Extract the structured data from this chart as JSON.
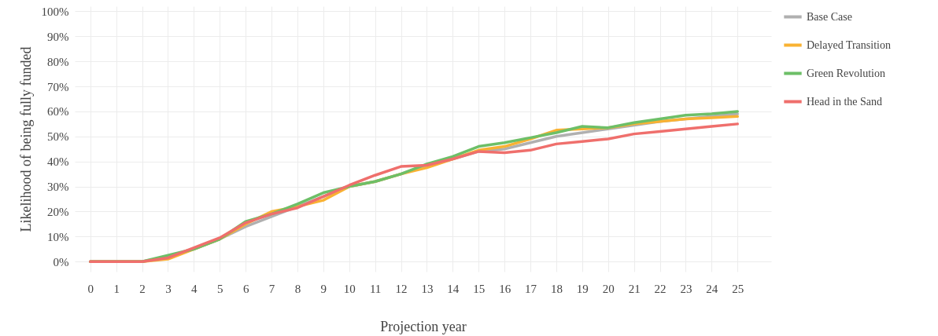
{
  "chart_data": {
    "type": "line",
    "xlabel": "Projection year",
    "ylabel": "Likelihood of being fully funded",
    "x": [
      0,
      1,
      2,
      3,
      4,
      5,
      6,
      7,
      8,
      9,
      10,
      11,
      12,
      13,
      14,
      15,
      16,
      17,
      18,
      19,
      20,
      21,
      22,
      23,
      24,
      25
    ],
    "xlim": [
      -0.6,
      26.3
    ],
    "xticks": [
      0,
      1,
      2,
      3,
      4,
      5,
      6,
      7,
      8,
      9,
      10,
      11,
      12,
      13,
      14,
      15,
      16,
      17,
      18,
      19,
      20,
      21,
      22,
      23,
      24,
      25
    ],
    "ylim": [
      -4,
      102
    ],
    "yticks": [
      {
        "value": 0,
        "label": "0%"
      },
      {
        "value": 10,
        "label": "10%"
      },
      {
        "value": 20,
        "label": "20%"
      },
      {
        "value": 30,
        "label": "30%"
      },
      {
        "value": 40,
        "label": "40%"
      },
      {
        "value": 50,
        "label": "50%"
      },
      {
        "value": 60,
        "label": "60%"
      },
      {
        "value": 70,
        "label": "70%"
      },
      {
        "value": 80,
        "label": "80%"
      },
      {
        "value": 90,
        "label": "90%"
      },
      {
        "value": 100,
        "label": "100%"
      }
    ],
    "grid": true,
    "legend": "top right",
    "marker": "none",
    "line_style": "solid",
    "series": [
      {
        "name": "Base Case",
        "color": "#b0b0b0",
        "values": [
          0,
          0,
          0,
          2,
          5,
          9,
          14,
          18,
          22,
          26,
          30,
          32,
          35,
          38.5,
          41,
          44,
          45,
          47.5,
          50,
          51.5,
          53,
          54.5,
          56,
          57,
          58,
          59
        ]
      },
      {
        "name": "Delayed Transition",
        "color": "#f9b233",
        "values": [
          0,
          0,
          0,
          1,
          5,
          9,
          15,
          20,
          22,
          24.5,
          30,
          32,
          35,
          37.5,
          41,
          44.5,
          46,
          49,
          52.5,
          53,
          53.5,
          55,
          56,
          57,
          57.5,
          58
        ]
      },
      {
        "name": "Green Revolution",
        "color": "#6dbf67",
        "values": [
          0,
          0,
          0,
          2.5,
          5,
          9,
          16,
          19,
          23,
          27.5,
          30,
          32,
          35,
          39,
          42,
          46,
          47.5,
          49.5,
          51.5,
          54,
          53.5,
          55.5,
          57,
          58.5,
          59,
          60
        ]
      },
      {
        "name": "Head in the Sand",
        "color": "#ef6f6c",
        "values": [
          0,
          0,
          0,
          1.5,
          5.5,
          9.5,
          15.5,
          19,
          21.5,
          26,
          30.5,
          34.5,
          38,
          38.5,
          41,
          44,
          43.5,
          44.5,
          47,
          48,
          49,
          51,
          52,
          53,
          54,
          55
        ]
      }
    ]
  }
}
